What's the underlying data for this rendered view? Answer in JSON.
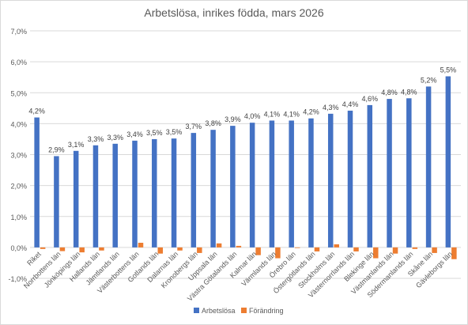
{
  "chart_data": {
    "type": "bar",
    "title": "Arbetslösa, inrikes födda, mars 2026",
    "xlabel": "",
    "ylabel": "",
    "ylim": [
      -0.01,
      0.07
    ],
    "yticks": [
      "7,0%",
      "6,0%",
      "5,0%",
      "4,0%",
      "3,0%",
      "2,0%",
      "1,0%",
      "0,0%",
      "-1,0%"
    ],
    "grid": true,
    "legend_position": "bottom",
    "categories": [
      "Riket",
      "Norrbottens län",
      "Jönköpings län",
      "Hallands län",
      "Jämtlands län",
      "Västerbottens län",
      "Gotlands län",
      "Dalarnas län",
      "Kronobergs län",
      "Uppsala län",
      "Västra Götalands län",
      "Kalmar län",
      "Värmlands län",
      "Örebro län",
      "Östergötlands län",
      "Stockholms län",
      "Västernorrlands län",
      "Blekinge län",
      "Västmanlands län",
      "Södermanlands län",
      "Skåne län",
      "Gävleborgs län"
    ],
    "series": [
      {
        "name": "Arbetslösa",
        "color": "#4472C4",
        "values": [
          0.042,
          0.0295,
          0.0312,
          0.033,
          0.0335,
          0.0345,
          0.035,
          0.0352,
          0.037,
          0.038,
          0.0393,
          0.0403,
          0.041,
          0.041,
          0.0417,
          0.0432,
          0.0442,
          0.046,
          0.048,
          0.0482,
          0.052,
          0.0553
        ],
        "data_labels": [
          "4,2%",
          "2,9%",
          "3,1%",
          "3,3%",
          "3,3%",
          "3,4%",
          "3,5%",
          "3,5%",
          "3,7%",
          "3,8%",
          "3,9%",
          "4,0%",
          "4,1%",
          "4,1%",
          "4,2%",
          "4,3%",
          "4,4%",
          "4,6%",
          "4,8%",
          "4,8%",
          "5,2%",
          "5,5%"
        ]
      },
      {
        "name": "Förändring",
        "color": "#ED7D31",
        "values": [
          -0.0005,
          -0.0012,
          -0.0016,
          -0.001,
          0.0,
          0.0015,
          -0.002,
          -0.001,
          -0.0018,
          0.0013,
          0.0005,
          -0.0025,
          -0.0035,
          -0.0002,
          -0.0013,
          0.001,
          -0.0013,
          -0.0035,
          -0.002,
          -0.0005,
          -0.0018,
          -0.0038
        ]
      }
    ]
  }
}
